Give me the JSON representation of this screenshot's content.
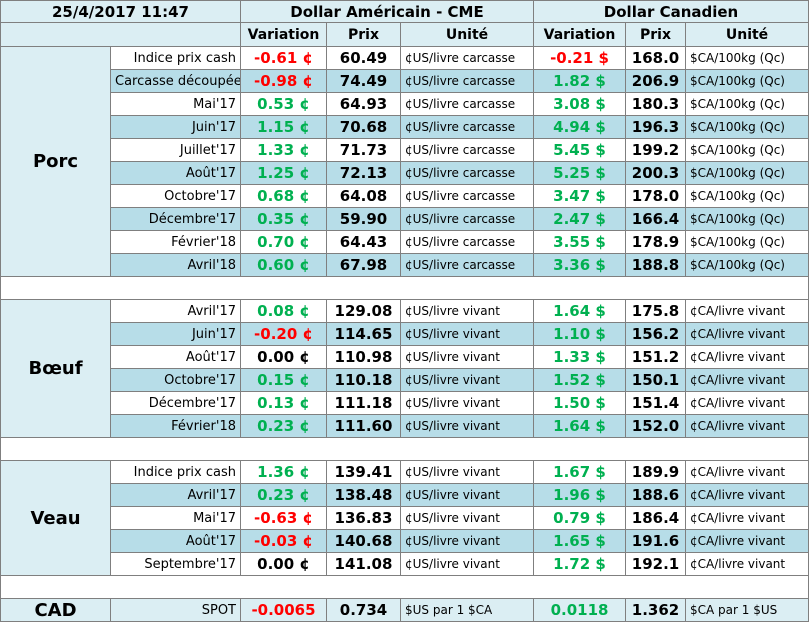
{
  "header": {
    "date": "25/4/2017 11:47",
    "usd": "Dollar Américain - CME",
    "cad": "Dollar Canadien",
    "columns": [
      "Variation",
      "Prix",
      "Unité",
      "Variation",
      "Prix",
      "Unité"
    ]
  },
  "sections": [
    {
      "name": "Porc",
      "rows": [
        [
          "Indice prix cash",
          "-0.61 ¢",
          "60.49",
          "¢US/livre carcasse",
          "-0.21 $",
          "168.0",
          "$CA/100kg (Qc)"
        ],
        [
          "Carcasse découpée",
          "-0.98 ¢",
          "74.49",
          "¢US/livre carcasse",
          "1.82 $",
          "206.9",
          "$CA/100kg (Qc)"
        ],
        [
          "Mai'17",
          "0.53 ¢",
          "64.93",
          "¢US/livre carcasse",
          "3.08 $",
          "180.3",
          "$CA/100kg (Qc)"
        ],
        [
          "Juin'17",
          "1.15 ¢",
          "70.68",
          "¢US/livre carcasse",
          "4.94 $",
          "196.3",
          "$CA/100kg (Qc)"
        ],
        [
          "Juillet'17",
          "1.33 ¢",
          "71.73",
          "¢US/livre carcasse",
          "5.45 $",
          "199.2",
          "$CA/100kg (Qc)"
        ],
        [
          "Août'17",
          "1.25 ¢",
          "72.13",
          "¢US/livre carcasse",
          "5.25 $",
          "200.3",
          "$CA/100kg (Qc)"
        ],
        [
          "Octobre'17",
          "0.68 ¢",
          "64.08",
          "¢US/livre carcasse",
          "3.47 $",
          "178.0",
          "$CA/100kg (Qc)"
        ],
        [
          "Décembre'17",
          "0.35 ¢",
          "59.90",
          "¢US/livre carcasse",
          "2.47 $",
          "166.4",
          "$CA/100kg (Qc)"
        ],
        [
          "Février'18",
          "0.70 ¢",
          "64.43",
          "¢US/livre carcasse",
          "3.55 $",
          "178.9",
          "$CA/100kg (Qc)"
        ],
        [
          "Avril'18",
          "0.60 ¢",
          "67.98",
          "¢US/livre carcasse",
          "3.36 $",
          "188.8",
          "$CA/100kg (Qc)"
        ]
      ]
    },
    {
      "name": "Bœuf",
      "rows": [
        [
          "Avril'17",
          "0.08 ¢",
          "129.08",
          "¢US/livre vivant",
          "1.64 $",
          "175.8",
          "¢CA/livre vivant"
        ],
        [
          "Juin'17",
          "-0.20 ¢",
          "114.65",
          "¢US/livre vivant",
          "1.10 $",
          "156.2",
          "¢CA/livre vivant"
        ],
        [
          "Août'17",
          "0.00 ¢",
          "110.98",
          "¢US/livre vivant",
          "1.33 $",
          "151.2",
          "¢CA/livre vivant"
        ],
        [
          "Octobre'17",
          "0.15 ¢",
          "110.18",
          "¢US/livre vivant",
          "1.52 $",
          "150.1",
          "¢CA/livre vivant"
        ],
        [
          "Décembre'17",
          "0.13 ¢",
          "111.18",
          "¢US/livre vivant",
          "1.50 $",
          "151.4",
          "¢CA/livre vivant"
        ],
        [
          "Février'18",
          "0.23 ¢",
          "111.60",
          "¢US/livre vivant",
          "1.64 $",
          "152.0",
          "¢CA/livre vivant"
        ]
      ]
    },
    {
      "name": "Veau",
      "rows": [
        [
          "Indice prix cash",
          "1.36 ¢",
          "139.41",
          "¢US/livre vivant",
          "1.67 $",
          "189.9",
          "¢CA/livre vivant"
        ],
        [
          "Avril'17",
          "0.23 ¢",
          "138.48",
          "¢US/livre vivant",
          "1.96 $",
          "188.6",
          "¢CA/livre vivant"
        ],
        [
          "Mai'17",
          "-0.63 ¢",
          "136.83",
          "¢US/livre vivant",
          "0.79 $",
          "186.4",
          "¢CA/livre vivant"
        ],
        [
          "Août'17",
          "-0.03 ¢",
          "140.68",
          "¢US/livre vivant",
          "1.65 $",
          "191.6",
          "¢CA/livre vivant"
        ],
        [
          "Septembre'17",
          "0.00 ¢",
          "141.08",
          "¢US/livre vivant",
          "1.72 $",
          "192.1",
          "¢CA/livre vivant"
        ]
      ]
    }
  ],
  "cad": {
    "name": "CAD",
    "row": [
      "SPOT",
      "-0.0065",
      "0.734",
      "$US par 1 $CA",
      "0.0118",
      "1.362",
      "$CA par 1 $US"
    ]
  }
}
